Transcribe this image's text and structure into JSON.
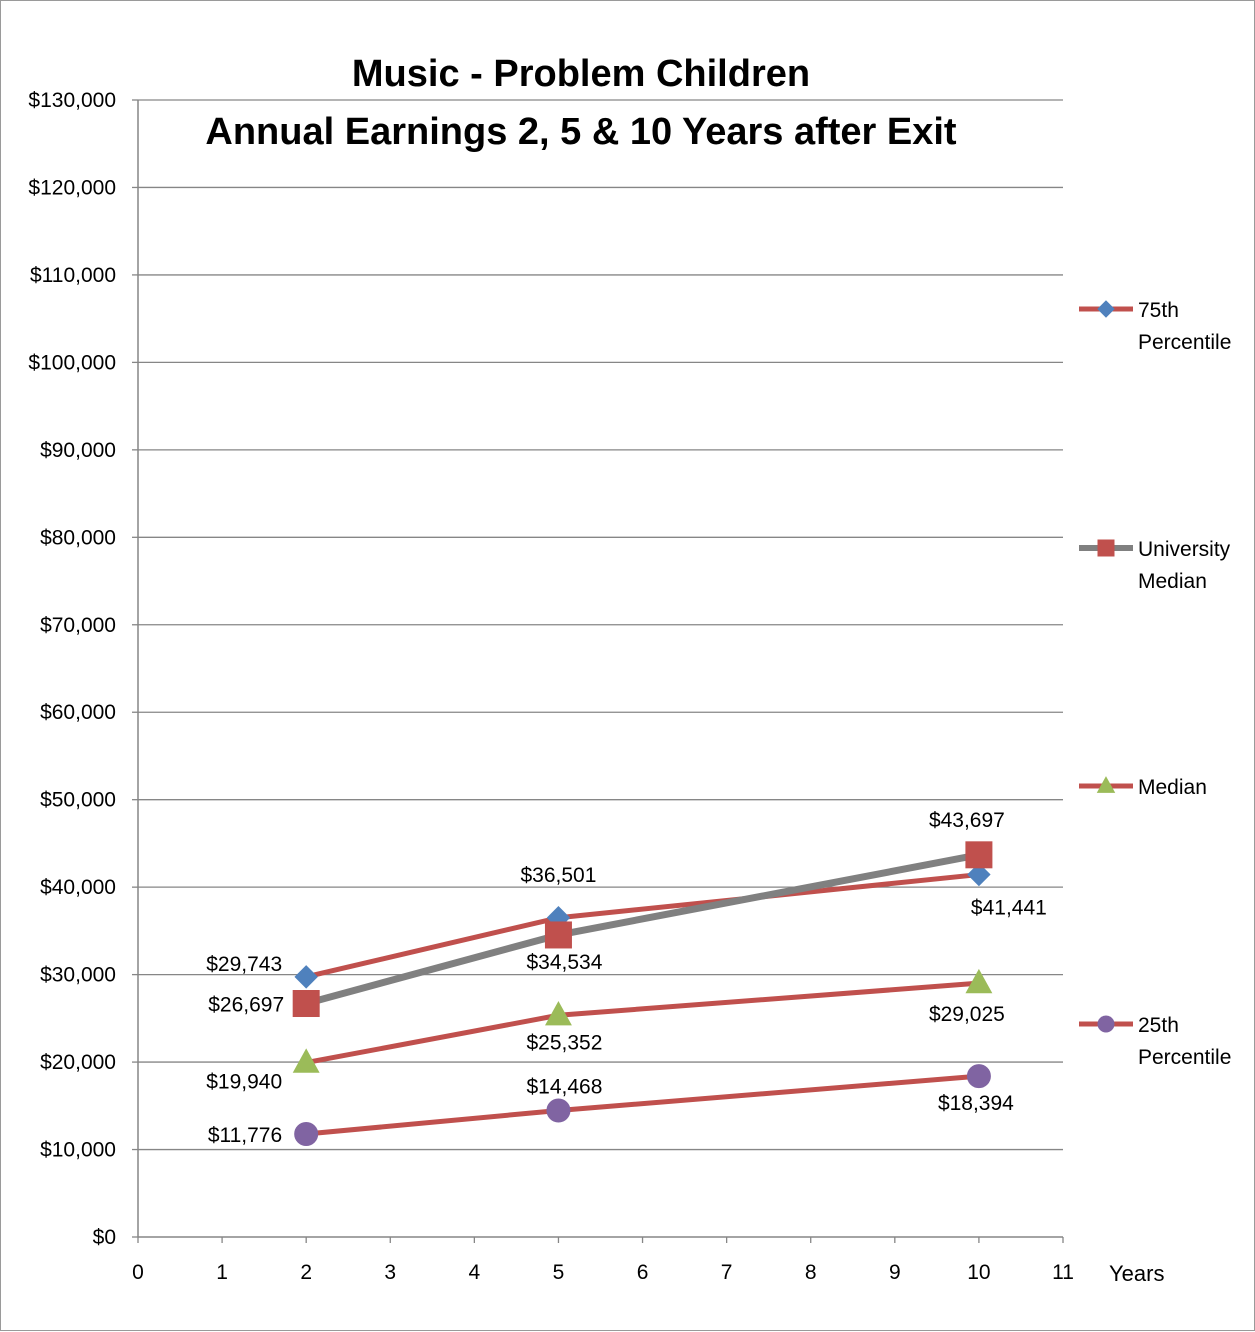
{
  "chart_data": {
    "type": "line",
    "title_lines": [
      "Music - Problem Children",
      "Annual Earnings 2, 5 & 10 Years after Exit"
    ],
    "xlabel": "Years",
    "ylabel": "",
    "xlim": [
      0,
      11
    ],
    "ylim": [
      0,
      130000
    ],
    "x_ticks": [
      "0",
      "1",
      "2",
      "3",
      "4",
      "5",
      "6",
      "7",
      "8",
      "9",
      "10",
      "11"
    ],
    "y_ticks": [
      "$0",
      "$10,000",
      "$20,000",
      "$30,000",
      "$40,000",
      "$50,000",
      "$60,000",
      "$70,000",
      "$80,000",
      "$90,000",
      "$100,000",
      "$110,000",
      "$120,000",
      "$130,000"
    ],
    "grid": "horizontal",
    "legend_position": "right",
    "series": [
      {
        "name_lines": [
          "75th",
          "Percentile"
        ],
        "x": [
          2,
          5,
          10
        ],
        "values": [
          29743,
          36501,
          41441
        ],
        "labels": [
          "$29,743",
          "$36,501",
          "$41,441"
        ],
        "line_color": "#c0504d",
        "marker": "diamond",
        "marker_color": "#4f81bd"
      },
      {
        "name_lines": [
          "University",
          "Median"
        ],
        "x": [
          2,
          5,
          10
        ],
        "values": [
          26697,
          34534,
          43697
        ],
        "labels": [
          "$26,697",
          "$34,534",
          "$43,697"
        ],
        "line_color": "#808080",
        "marker": "square",
        "marker_color": "#c0504d"
      },
      {
        "name_lines": [
          "Median"
        ],
        "x": [
          2,
          5,
          10
        ],
        "values": [
          19940,
          25352,
          29025
        ],
        "labels": [
          "$19,940",
          "$25,352",
          "$29,025"
        ],
        "line_color": "#c0504d",
        "marker": "triangle",
        "marker_color": "#9bbb59"
      },
      {
        "name_lines": [
          "25th",
          "Percentile"
        ],
        "x": [
          2,
          5,
          10
        ],
        "values": [
          11776,
          14468,
          18394
        ],
        "labels": [
          "$11,776",
          "$14,468",
          "$18,394"
        ],
        "line_color": "#c0504d",
        "marker": "circle",
        "marker_color": "#8064a2"
      }
    ]
  }
}
